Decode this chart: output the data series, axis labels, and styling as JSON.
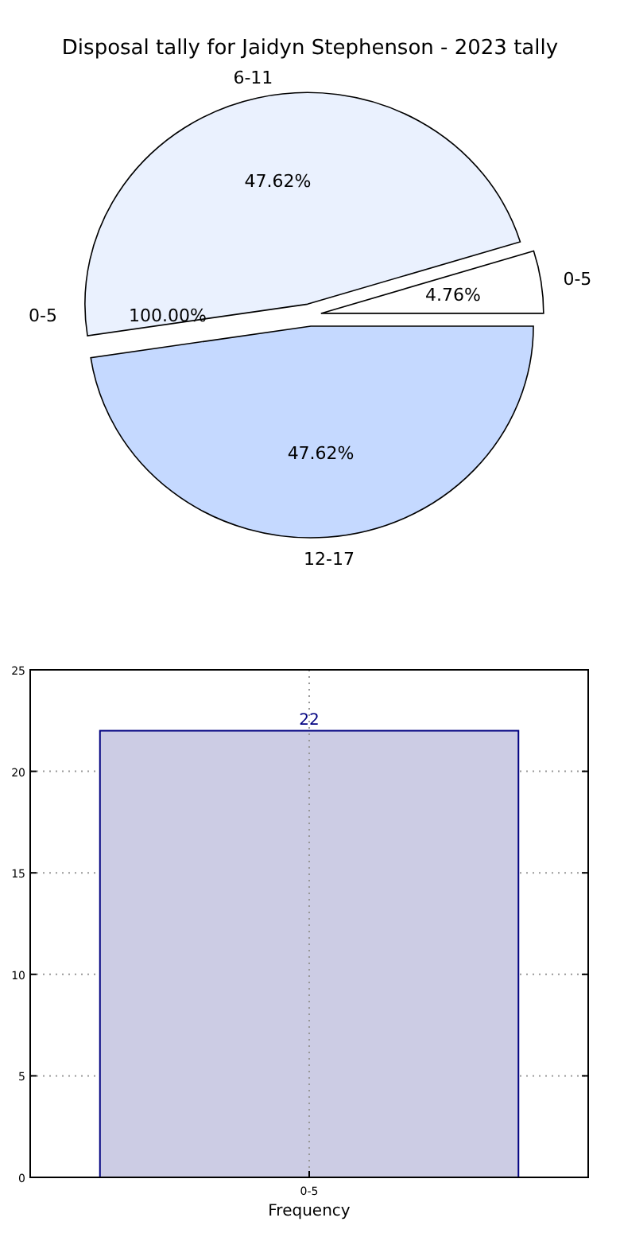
{
  "chart_data": [
    {
      "type": "pie",
      "title": "Disposal tally for Jaidyn Stephenson - 2023 tally",
      "categories": [
        "0-5",
        "6-11",
        "12-17"
      ],
      "values": [
        4.76,
        47.62,
        47.62
      ],
      "colors": [
        "#ffffff",
        "#eaf1fe",
        "#c5d9ff"
      ],
      "value_labels": [
        "4.76%",
        "47.62%",
        "47.62%"
      ],
      "annotations": [
        "0-5",
        "100.00%"
      ]
    },
    {
      "type": "bar",
      "categories": [
        "0-5"
      ],
      "values": [
        22
      ],
      "color": "#ccccE4",
      "xlabel": "Frequency",
      "ylim": [
        0,
        25
      ],
      "yticks": [
        0,
        5,
        10,
        15,
        20,
        25
      ],
      "grid": true,
      "data_labels": true
    }
  ]
}
